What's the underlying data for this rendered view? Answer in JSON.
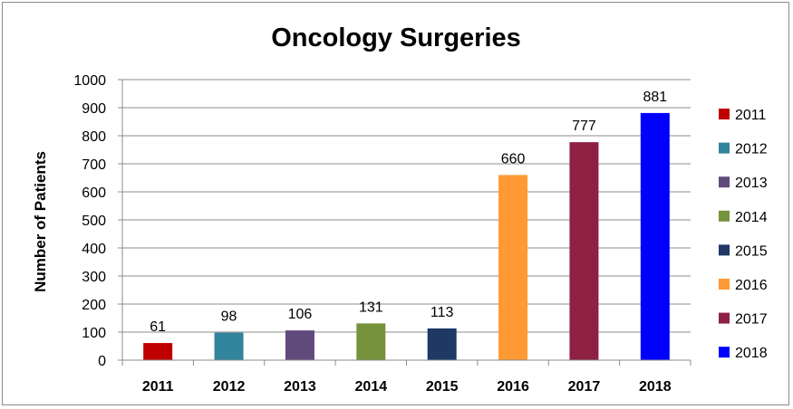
{
  "chart_data": {
    "type": "bar",
    "title": "Oncology Surgeries",
    "xlabel": "",
    "ylabel": "Number of Patients",
    "ylim": [
      0,
      1000
    ],
    "yticks": [
      0,
      100,
      200,
      300,
      400,
      500,
      600,
      700,
      800,
      900,
      1000
    ],
    "grid": "horizontal",
    "legend_position": "right",
    "categories": [
      "2011",
      "2012",
      "2013",
      "2014",
      "2015",
      "2016",
      "2017",
      "2018"
    ],
    "values": [
      61,
      98,
      106,
      131,
      113,
      660,
      777,
      881
    ],
    "colors": [
      "#c00000",
      "#31849b",
      "#604a7b",
      "#76923c",
      "#1f3864",
      "#ff9933",
      "#8e2043",
      "#0000ff"
    ],
    "legend": [
      "2011",
      "2012",
      "2013",
      "2014",
      "2015",
      "2016",
      "2017",
      "2018"
    ]
  }
}
